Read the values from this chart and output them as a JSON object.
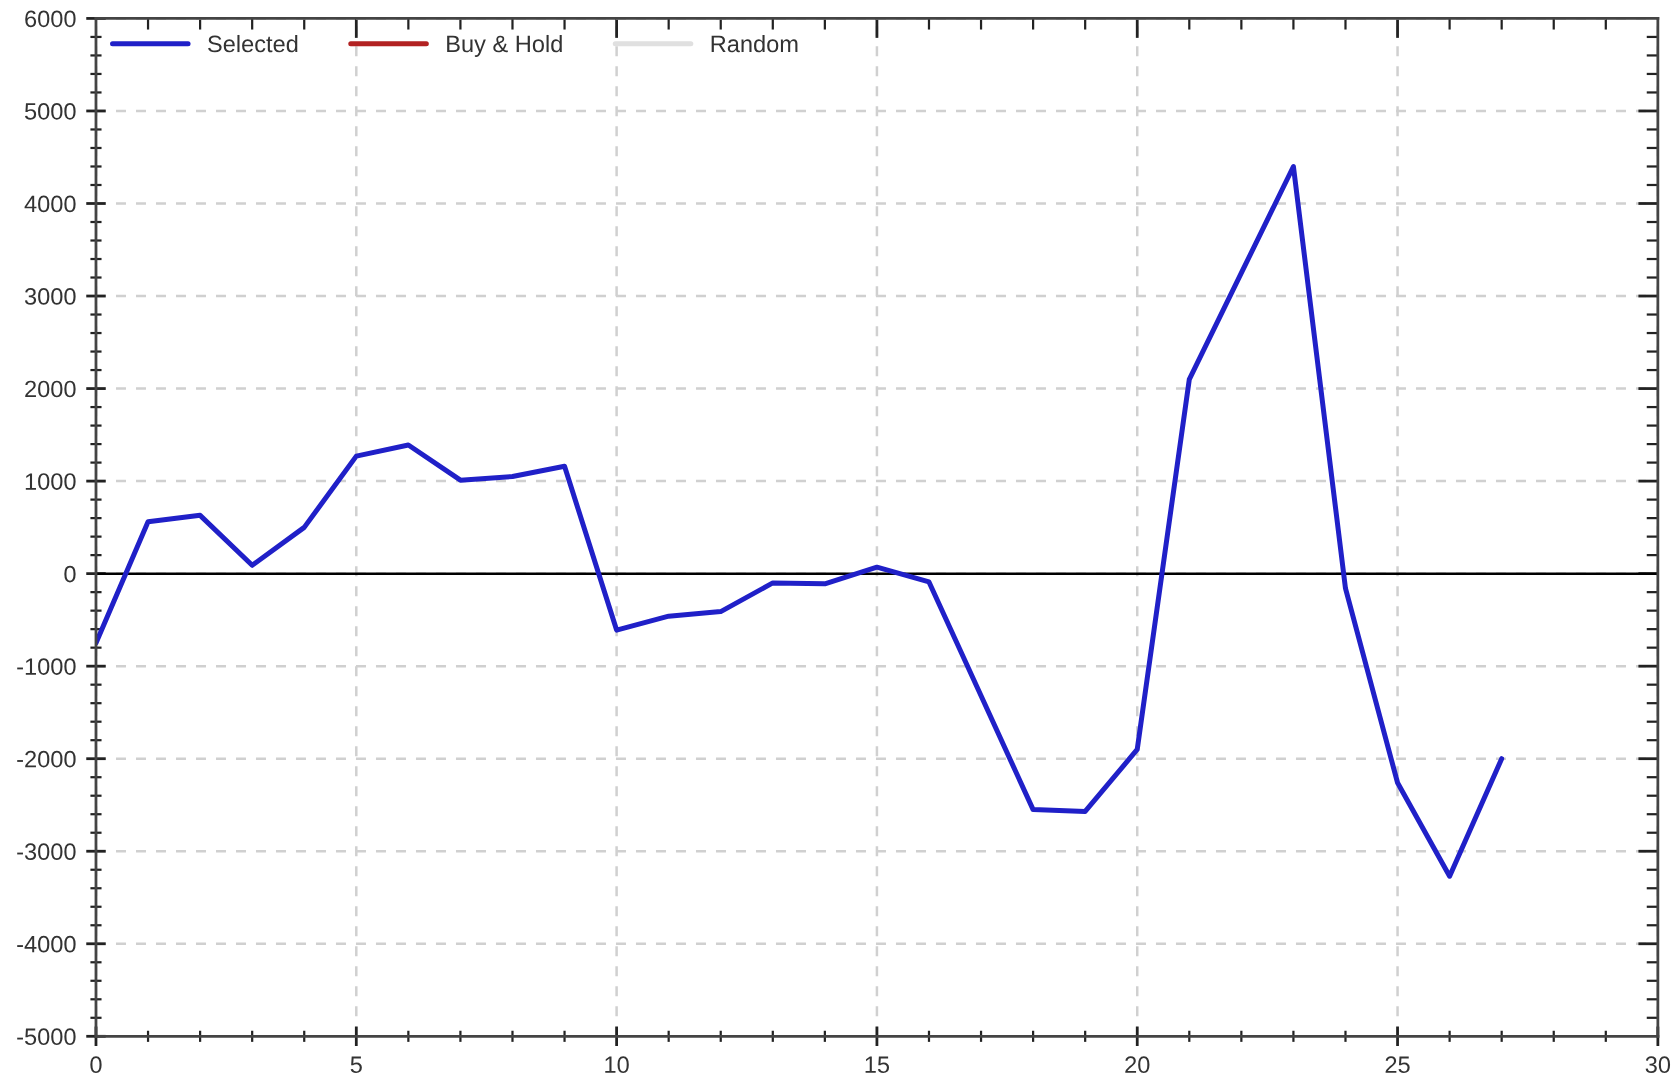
{
  "chart_data": {
    "type": "line",
    "x": [
      0,
      1,
      2,
      3,
      4,
      5,
      6,
      7,
      8,
      9,
      10,
      11,
      12,
      13,
      14,
      15,
      16,
      17,
      18,
      19,
      20,
      21,
      22,
      23,
      24,
      25,
      26,
      27
    ],
    "series": [
      {
        "name": "Selected",
        "color": "#2020c8",
        "values": [
          -750,
          560,
          630,
          90,
          500,
          1270,
          1390,
          1010,
          1050,
          1160,
          -610,
          -460,
          -410,
          -100,
          -110,
          70,
          -90,
          -1320,
          -2550,
          -2570,
          -1900,
          2100,
          3250,
          4400,
          -160,
          -2260,
          -3270,
          -2000
        ]
      },
      {
        "name": "Buy & Hold",
        "color": "#b22222",
        "values": [
          null,
          null,
          null,
          null,
          null,
          null,
          null,
          null,
          null,
          null,
          null,
          null,
          null,
          null,
          null,
          null,
          null,
          null,
          null,
          null,
          null,
          null,
          null,
          null,
          null,
          null,
          null,
          null
        ]
      },
      {
        "name": "Random",
        "color": "#e0e0e0",
        "values": [
          null,
          null,
          null,
          null,
          null,
          null,
          null,
          null,
          null,
          null,
          null,
          null,
          null,
          null,
          null,
          null,
          null,
          null,
          null,
          null,
          null,
          null,
          null,
          null,
          null,
          null,
          null,
          null
        ]
      }
    ],
    "xlim": [
      0,
      30
    ],
    "xticks": [
      0,
      {
        "value": 1,
        "label": null
      },
      {
        "value": 2,
        "label": null
      },
      {
        "value": 3,
        "label": null
      },
      {
        "value": 4,
        "label": null
      },
      5,
      {
        "value": 6,
        "label": null
      },
      {
        "value": 7,
        "label": null
      },
      {
        "value": 8,
        "label": null
      },
      {
        "value": 9,
        "label": null
      },
      10,
      {
        "value": 11,
        "label": null
      },
      {
        "value": 12,
        "label": null
      },
      {
        "value": 13,
        "label": null
      },
      {
        "value": 14,
        "label": null
      },
      15,
      {
        "value": 16,
        "label": null
      },
      {
        "value": 17,
        "label": null
      },
      {
        "value": 18,
        "label": null
      },
      {
        "value": 19,
        "label": null
      },
      20,
      {
        "value": 21,
        "label": null
      },
      {
        "value": 22,
        "label": null
      },
      {
        "value": 23,
        "label": null
      },
      {
        "value": 24,
        "label": null
      },
      25,
      {
        "value": 26,
        "label": null
      },
      {
        "value": 27,
        "label": null
      },
      {
        "value": 28,
        "label": null
      },
      {
        "value": 29,
        "label": null
      },
      30
    ],
    "ylim": [
      -5000,
      6000
    ],
    "yticks": [
      -5000,
      {
        "value": -4800,
        "label": null
      },
      {
        "value": -4600,
        "label": null
      },
      {
        "value": -4400,
        "label": null
      },
      {
        "value": -4200,
        "label": null
      },
      -4000,
      {
        "value": -3800,
        "label": null
      },
      {
        "value": -3600,
        "label": null
      },
      {
        "value": -3400,
        "label": null
      },
      {
        "value": -3200,
        "label": null
      },
      -3000,
      {
        "value": -2800,
        "label": null
      },
      {
        "value": -2600,
        "label": null
      },
      {
        "value": -2400,
        "label": null
      },
      {
        "value": -2200,
        "label": null
      },
      -2000,
      {
        "value": -1800,
        "label": null
      },
      {
        "value": -1600,
        "label": null
      },
      {
        "value": -1400,
        "label": null
      },
      {
        "value": -1200,
        "label": null
      },
      -1000,
      {
        "value": -800,
        "label": null
      },
      {
        "value": -600,
        "label": null
      },
      {
        "value": -400,
        "label": null
      },
      {
        "value": -200,
        "label": null
      },
      0,
      {
        "value": 200,
        "label": null
      },
      {
        "value": 400,
        "label": null
      },
      {
        "value": 600,
        "label": null
      },
      {
        "value": 800,
        "label": null
      },
      1000,
      {
        "value": 1200,
        "label": null
      },
      {
        "value": 1400,
        "label": null
      },
      {
        "value": 1600,
        "label": null
      },
      {
        "value": 1800,
        "label": null
      },
      2000,
      {
        "value": 2200,
        "label": null
      },
      {
        "value": 2400,
        "label": null
      },
      {
        "value": 2600,
        "label": null
      },
      {
        "value": 2800,
        "label": null
      },
      3000,
      {
        "value": 3200,
        "label": null
      },
      {
        "value": 3400,
        "label": null
      },
      {
        "value": 3600,
        "label": null
      },
      {
        "value": 3800,
        "label": null
      },
      4000,
      {
        "value": 4200,
        "label": null
      },
      {
        "value": 4400,
        "label": null
      },
      {
        "value": 4600,
        "label": null
      },
      {
        "value": 4800,
        "label": null
      },
      5000,
      {
        "value": 5200,
        "label": null
      },
      {
        "value": 5400,
        "label": null
      },
      {
        "value": 5600,
        "label": null
      },
      {
        "value": 5800,
        "label": null
      },
      6000
    ],
    "ref_lines": [
      {
        "axis": "y",
        "value": 0,
        "color": "#000000",
        "line_style": "solid"
      }
    ],
    "grid": true,
    "legend": "top left",
    "line_style": "solid",
    "marker": "none"
  }
}
